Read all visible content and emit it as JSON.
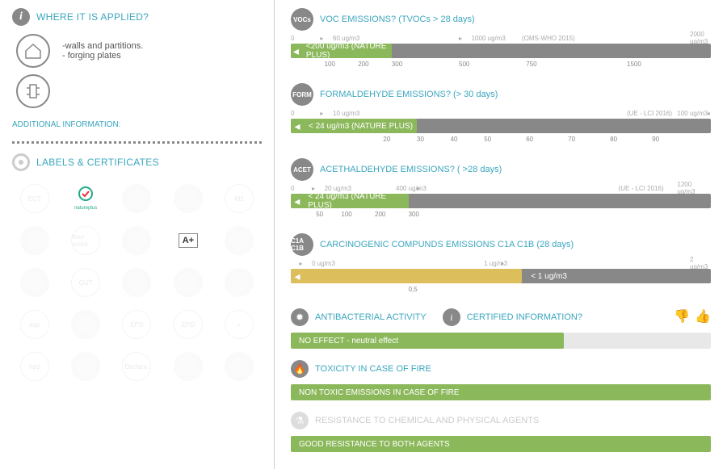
{
  "left": {
    "whereApplied": {
      "title": "WHERE IT IS APPLIED?",
      "items": [
        {
          "text": "-walls and partitions.\n- forging plates"
        }
      ]
    },
    "additionalInfo": "ADDITIONAL INFORMATION:",
    "labelsTitle": "LABELS & CERTIFICATES",
    "certs": [
      {
        "t": "ECT",
        "dim": true
      },
      {
        "t": "natureplus",
        "dim": false
      },
      {
        "t": "",
        "dim": true
      },
      {
        "t": "",
        "dim": true
      },
      {
        "t": "M1",
        "dim": true
      },
      {
        "t": "",
        "dim": true
      },
      {
        "t": "floor score",
        "dim": true
      },
      {
        "t": "",
        "dim": true
      },
      {
        "t": "A+",
        "dim": false
      },
      {
        "t": "",
        "dim": true
      },
      {
        "t": "",
        "dim": true
      },
      {
        "t": "GUT",
        "dim": true
      },
      {
        "t": "",
        "dim": true
      },
      {
        "t": "",
        "dim": true
      },
      {
        "t": "",
        "dim": true
      },
      {
        "t": "dap",
        "dim": true
      },
      {
        "t": "",
        "dim": true
      },
      {
        "t": "EPD",
        "dim": true
      },
      {
        "t": "EPD",
        "dim": true
      },
      {
        "t": "✓",
        "dim": true
      },
      {
        "t": "hpd",
        "dim": true
      },
      {
        "t": "",
        "dim": true
      },
      {
        "t": "Declare.",
        "dim": true
      },
      {
        "t": "",
        "dim": true
      },
      {
        "t": "",
        "dim": true
      }
    ]
  },
  "emissions": [
    {
      "badge": "VOCs",
      "title": "VOC EMISSIONS? (TVOCs > 28 days)",
      "topScale": [
        {
          "p": 0,
          "t": "0"
        },
        {
          "p": 7,
          "t": "▸"
        },
        {
          "p": 10,
          "t": "60 ug/m3"
        },
        {
          "p": 40,
          "t": "▸"
        },
        {
          "p": 43,
          "t": "1000 ug/m3"
        },
        {
          "p": 55,
          "t": "(OMS-WHO 2015)"
        },
        {
          "p": 95,
          "t": "2000 ug/m3"
        }
      ],
      "fillPct": 24,
      "fillColor": "green",
      "fillText": "<200 ug/m3 (NATURE PLUS)",
      "extraText": "",
      "bottomScale": [
        {
          "p": 8,
          "t": "100"
        },
        {
          "p": 16,
          "t": "200"
        },
        {
          "p": 24,
          "t": "300"
        },
        {
          "p": 40,
          "t": "500"
        },
        {
          "p": 56,
          "t": "750"
        },
        {
          "p": 80,
          "t": "1500"
        }
      ]
    },
    {
      "badge": "FORM",
      "title": "FORMALDEHYDE EMISSIONS? (> 30 days)",
      "topScale": [
        {
          "p": 0,
          "t": "0"
        },
        {
          "p": 7,
          "t": "▸"
        },
        {
          "p": 10,
          "t": "10 ug/m3"
        },
        {
          "p": 80,
          "t": "(UE - LCI 2016)"
        },
        {
          "p": 92,
          "t": "100 ug/m3"
        },
        {
          "p": 99,
          "t": "◂"
        }
      ],
      "fillPct": 30,
      "fillColor": "green",
      "fillText": "< 24 ug/m3 (NATURE PLUS)",
      "extraText": "",
      "bottomScale": [
        {
          "p": 22,
          "t": "20"
        },
        {
          "p": 30,
          "t": "30"
        },
        {
          "p": 38,
          "t": "40"
        },
        {
          "p": 46,
          "t": "50"
        },
        {
          "p": 56,
          "t": "60"
        },
        {
          "p": 66,
          "t": "70"
        },
        {
          "p": 76,
          "t": "80"
        },
        {
          "p": 86,
          "t": "90"
        }
      ]
    },
    {
      "badge": "ACET",
      "title": "ACETHALDEHYDE EMISSIONS? ( >28 days)",
      "topScale": [
        {
          "p": 0,
          "t": "0"
        },
        {
          "p": 5,
          "t": "▸"
        },
        {
          "p": 8,
          "t": "20 ug/m3"
        },
        {
          "p": 25,
          "t": "400 ug/m3"
        },
        {
          "p": 30,
          "t": "▸"
        },
        {
          "p": 78,
          "t": "(UE - LCI 2016)"
        },
        {
          "p": 92,
          "t": "1200 ug/m3"
        }
      ],
      "fillPct": 28,
      "fillColor": "green",
      "fillText": "< 24 ug/m3 (NATURE PLUS)",
      "extraText": "",
      "bottomScale": [
        {
          "p": 6,
          "t": "50"
        },
        {
          "p": 12,
          "t": "100"
        },
        {
          "p": 20,
          "t": "200"
        },
        {
          "p": 28,
          "t": "300"
        }
      ]
    },
    {
      "badge": "C1A C1B",
      "title": "CARCINOGENIC COMPUNDS EMISSIONS C1A C1B (28 days)",
      "topScale": [
        {
          "p": 2,
          "t": "▸"
        },
        {
          "p": 5,
          "t": "0 ug/m3"
        },
        {
          "p": 46,
          "t": "1 ug/m3"
        },
        {
          "p": 50,
          "t": "▸"
        },
        {
          "p": 95,
          "t": "2 ug/m3"
        }
      ],
      "fillPct": 55,
      "fillColor": "yellow",
      "fillText": "",
      "extraText": "< 1 ug/m3",
      "bottomScale": [
        {
          "p": 28,
          "t": "0,5"
        }
      ]
    }
  ],
  "infoSections": [
    {
      "icon": "✹",
      "title": "ANTIBACTERIAL ACTIVITY",
      "extra": {
        "icon": "i",
        "title": "CERTIFIED INFORMATION?",
        "thumbs": true
      },
      "fillPct": 65,
      "text": "NO EFFECT - neutral effect"
    },
    {
      "icon": "🔥",
      "title": "TOXICITY IN CASE OF FIRE",
      "fillPct": 100,
      "text": "NON  TOXIC EMISSIONS IN CASE OF FIRE"
    },
    {
      "icon": "⚗",
      "title": "RESISTANCE TO CHEMICAL AND PHYSICAL AGENTS",
      "gray": true,
      "fillPct": 100,
      "text": "GOOD RESISTANCE TO BOTH  AGENTS"
    }
  ]
}
